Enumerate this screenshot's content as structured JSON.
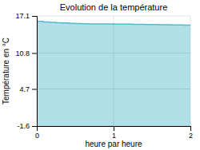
{
  "chart_data": {
    "type": "area",
    "line_style": "step",
    "title": "Evolution de la température",
    "x_label": "heure par heure",
    "y_label": "Température en °C",
    "x": [
      0.0,
      0.083,
      0.167,
      0.25,
      0.333,
      0.417,
      0.5,
      0.583,
      0.667,
      0.75,
      0.833,
      0.917,
      1.0,
      1.083,
      1.167,
      1.25,
      1.333,
      1.417,
      1.5,
      1.583,
      1.667,
      1.75,
      1.833,
      1.917,
      2.0
    ],
    "values": [
      16.2,
      16.1,
      16.0,
      15.95,
      15.9,
      15.85,
      15.8,
      15.78,
      15.76,
      15.75,
      15.74,
      15.73,
      15.72,
      15.71,
      15.7,
      15.69,
      15.68,
      15.66,
      15.64,
      15.62,
      15.6,
      15.58,
      15.56,
      15.54,
      15.52
    ],
    "color": "#55bbcc",
    "xlim": [
      0,
      2
    ],
    "xticks": [
      0,
      1,
      2
    ],
    "ylim": [
      -1.6,
      17.1
    ],
    "yticks": [
      -1.6,
      4.7,
      10.8,
      17.1
    ],
    "grid": true
  }
}
